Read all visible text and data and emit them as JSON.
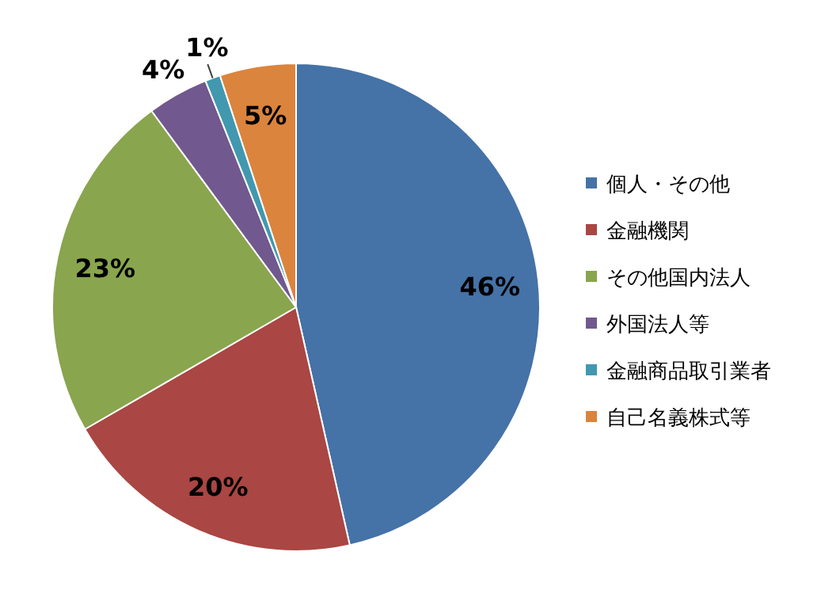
{
  "chart_data": {
    "type": "pie",
    "categories": [
      "個人・その他",
      "金融機関",
      "その他国内法人",
      "外国法人等",
      "金融商品取引業者",
      "自己名義株式等"
    ],
    "values": [
      46,
      20,
      23,
      4,
      1,
      5
    ],
    "value_labels": [
      "46%",
      "20%",
      "23%",
      "4%",
      "1%",
      "5%"
    ],
    "colors": [
      "#4572a7",
      "#aa4643",
      "#89a54e",
      "#71588f",
      "#4198af",
      "#db843d"
    ],
    "legend": "right"
  }
}
